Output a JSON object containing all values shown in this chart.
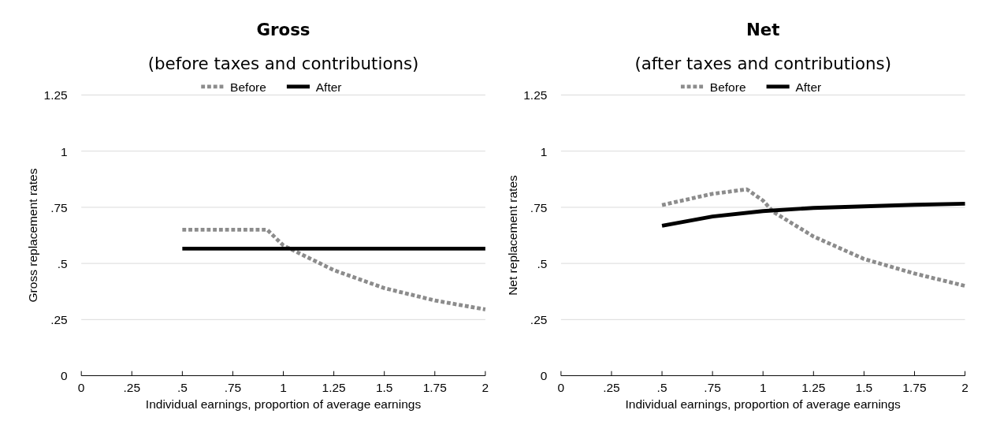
{
  "chart_data": [
    {
      "type": "line",
      "title": "Gross",
      "subtitle": "(before taxes and contributions)",
      "xlabel": "Individual earnings, proportion of average earnings",
      "ylabel": "Gross replacement rates",
      "xlim": [
        0,
        2
      ],
      "xticks": [
        0,
        {
          "value": 0.25,
          "label": ".25"
        },
        {
          "value": 0.5,
          "label": ".5"
        },
        {
          "value": 0.75,
          "label": ".75"
        },
        1,
        1.25,
        1.5,
        1.75,
        2
      ],
      "ylim": [
        0,
        1.25
      ],
      "yticks": [
        0,
        {
          "value": 0.25,
          "label": ".25"
        },
        {
          "value": 0.5,
          "label": ".5"
        },
        {
          "value": 0.75,
          "label": ".75"
        },
        1,
        1.25
      ],
      "grid": "y",
      "legend": "top",
      "series": [
        {
          "name": "Before",
          "color": "#8c8c8c",
          "line_style": "dotted",
          "x": [
            0.5,
            0.92,
            1.0,
            1.25,
            1.5,
            1.75,
            2
          ],
          "values": [
            0.65,
            0.65,
            0.58,
            0.47,
            0.39,
            0.335,
            0.295
          ]
        },
        {
          "name": "After",
          "color": "#000000",
          "line_style": "solid",
          "x": [
            0.5,
            2
          ],
          "values": [
            0.566,
            0.566
          ]
        }
      ]
    },
    {
      "type": "line",
      "title": "Net",
      "subtitle": "(after taxes and contributions)",
      "xlabel": "Individual earnings, proportion of average earnings",
      "ylabel": "Net replacement rates",
      "xlim": [
        0,
        2
      ],
      "xticks": [
        0,
        {
          "value": 0.25,
          "label": ".25"
        },
        {
          "value": 0.5,
          "label": ".5"
        },
        {
          "value": 0.75,
          "label": ".75"
        },
        1,
        1.25,
        1.5,
        1.75,
        2
      ],
      "ylim": [
        0,
        1.25
      ],
      "yticks": [
        0,
        {
          "value": 0.25,
          "label": ".25"
        },
        {
          "value": 0.5,
          "label": ".5"
        },
        {
          "value": 0.75,
          "label": ".75"
        },
        1,
        1.25
      ],
      "grid": "y",
      "legend": "top",
      "series": [
        {
          "name": "Before",
          "color": "#8c8c8c",
          "line_style": "dotted",
          "x": [
            0.5,
            0.75,
            0.92,
            1.0,
            1.05,
            1.25,
            1.5,
            1.75,
            2
          ],
          "values": [
            0.76,
            0.81,
            0.83,
            0.78,
            0.73,
            0.62,
            0.52,
            0.455,
            0.4
          ]
        },
        {
          "name": "After",
          "color": "#000000",
          "line_style": "solid",
          "x": [
            0.5,
            0.75,
            1.0,
            1.25,
            1.5,
            1.75,
            2
          ],
          "values": [
            0.668,
            0.709,
            0.733,
            0.747,
            0.754,
            0.761,
            0.766
          ]
        }
      ]
    }
  ]
}
